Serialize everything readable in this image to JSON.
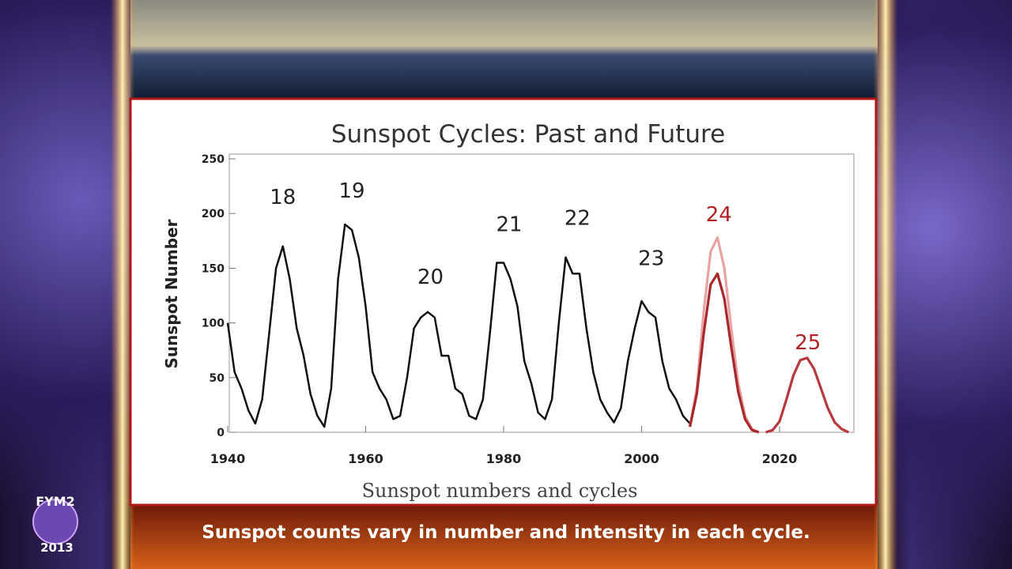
{
  "chart_data": {
    "type": "line",
    "title": "Sunspot Cycles: Past and Future",
    "y_label": "Sunspot Number",
    "xlim": [
      1940,
      2031
    ],
    "ylim": [
      0,
      250
    ],
    "xticks": [
      1940,
      1960,
      1980,
      2000,
      2020
    ],
    "yticks": [
      0,
      50,
      100,
      150,
      200,
      250
    ],
    "grid": false,
    "series": [
      {
        "color": "#111111",
        "x": [
          1940,
          1941,
          1942,
          1943,
          1944,
          1945,
          1946,
          1947,
          1948,
          1949,
          1950,
          1951,
          1952,
          1953,
          1954,
          1955,
          1956,
          1957,
          1958,
          1959,
          1960,
          1961,
          1962,
          1963,
          1964,
          1965,
          1966,
          1967,
          1968,
          1969,
          1970,
          1971,
          1972,
          1973,
          1974,
          1975,
          1976,
          1977,
          1978,
          1979,
          1980,
          1981,
          1982,
          1983,
          1984,
          1985,
          1986,
          1987,
          1988,
          1989,
          1990,
          1991,
          1992,
          1993,
          1994,
          1995,
          1996,
          1997,
          1998,
          1999,
          2000,
          2001,
          2002,
          2003,
          2004,
          2005,
          2006,
          2007
        ],
        "values": [
          100,
          55,
          40,
          20,
          8,
          30,
          90,
          150,
          170,
          140,
          95,
          70,
          35,
          15,
          5,
          40,
          140,
          190,
          185,
          160,
          115,
          55,
          40,
          30,
          12,
          15,
          50,
          95,
          105,
          110,
          105,
          70,
          70,
          40,
          35,
          15,
          12,
          30,
          90,
          155,
          155,
          140,
          115,
          65,
          45,
          18,
          12,
          30,
          100,
          160,
          145,
          145,
          95,
          55,
          30,
          18,
          9,
          22,
          65,
          95,
          120,
          110,
          105,
          65,
          40,
          30,
          15,
          8
        ]
      },
      {
        "color": "#e9a3a3",
        "x": [
          2007,
          2008,
          2009,
          2010,
          2011,
          2012,
          2013,
          2014,
          2015,
          2016,
          2017
        ],
        "values": [
          5,
          40,
          110,
          165,
          178,
          150,
          95,
          45,
          15,
          3,
          0
        ]
      },
      {
        "color": "#a8282c",
        "x": [
          2007,
          2008,
          2009,
          2010,
          2011,
          2012,
          2013,
          2014,
          2015,
          2016,
          2017
        ],
        "values": [
          5,
          35,
          90,
          135,
          145,
          122,
          78,
          37,
          12,
          2,
          0
        ]
      },
      {
        "color": "#b8383c",
        "x": [
          2018,
          2019,
          2020,
          2021,
          2022,
          2023,
          2024,
          2025,
          2026,
          2027,
          2028,
          2029,
          2030
        ],
        "values": [
          0,
          2,
          10,
          30,
          52,
          66,
          68,
          58,
          40,
          22,
          9,
          3,
          0
        ]
      }
    ],
    "annotations": [
      {
        "text": "18",
        "x": 1948,
        "y": 216,
        "color": "#222222"
      },
      {
        "text": "19",
        "x": 1958,
        "y": 222,
        "color": "#222222"
      },
      {
        "text": "20",
        "x": 1969.4,
        "y": 143,
        "color": "#222222"
      },
      {
        "text": "21",
        "x": 1980.8,
        "y": 191,
        "color": "#222222"
      },
      {
        "text": "22",
        "x": 1990.7,
        "y": 197,
        "color": "#222222"
      },
      {
        "text": "23",
        "x": 2001.4,
        "y": 160,
        "color": "#222222"
      },
      {
        "text": "24",
        "x": 2011.2,
        "y": 200,
        "color": "#b22222"
      },
      {
        "text": "25",
        "x": 2024.1,
        "y": 83,
        "color": "#b22222"
      }
    ]
  },
  "caption": "Sunspot numbers and cycles",
  "subtitle": "Sunspot counts vary in number and intensity in each cycle.",
  "logo": {
    "name": "FYM2",
    "year": "2013"
  }
}
